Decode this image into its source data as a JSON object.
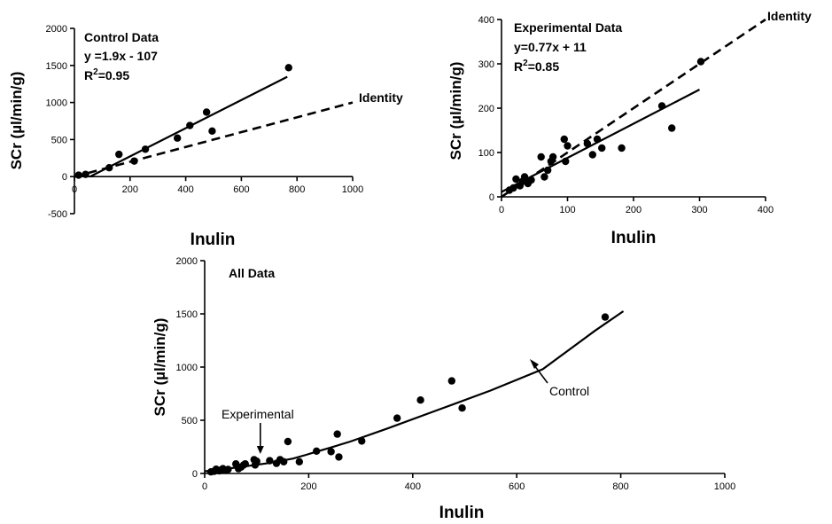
{
  "chart_data": [
    {
      "type": "scatter",
      "xlabel": "Inulin",
      "ylabel": "SCr (µl/min/g)",
      "xlim": [
        0,
        1000
      ],
      "ylim": [
        -500,
        2000
      ],
      "x_ticks": [
        "0",
        "200",
        "400",
        "600",
        "800",
        "1000"
      ],
      "y_ticks": [
        "-500",
        "0",
        "500",
        "1000",
        "1500",
        "2000"
      ],
      "annotations": {
        "title": "Control Data",
        "equation": "y =1.9x - 107",
        "r2_prefix": "R",
        "r2_sup": "2",
        "r2_value": "=0.95",
        "identity_label": "Identity"
      },
      "points": [
        {
          "x": 15,
          "y": 20
        },
        {
          "x": 40,
          "y": 30
        },
        {
          "x": 125,
          "y": 120
        },
        {
          "x": 160,
          "y": 300
        },
        {
          "x": 215,
          "y": 210
        },
        {
          "x": 255,
          "y": 370
        },
        {
          "x": 370,
          "y": 520
        },
        {
          "x": 415,
          "y": 690
        },
        {
          "x": 475,
          "y": 870
        },
        {
          "x": 495,
          "y": 615
        },
        {
          "x": 770,
          "y": 1470
        }
      ],
      "fit_line": {
        "x": [
          55,
          765
        ],
        "y": [
          -2,
          1347
        ]
      },
      "identity_line": {
        "x": [
          0,
          1000
        ],
        "y": [
          0,
          1000
        ]
      }
    },
    {
      "type": "scatter",
      "xlabel": "Inulin",
      "ylabel": "SCr (µl/min/g)",
      "xlim": [
        0,
        400
      ],
      "ylim": [
        0,
        400
      ],
      "x_ticks": [
        "0",
        "100",
        "200",
        "300",
        "400"
      ],
      "y_ticks": [
        "0",
        "100",
        "200",
        "300",
        "400"
      ],
      "annotations": {
        "title": "Experimental Data",
        "equation": "y=0.77x + 11",
        "r2_prefix": "R",
        "r2_sup": "2",
        "r2_value": "=0.85",
        "identity_label": "Identity"
      },
      "points": [
        {
          "x": 12,
          "y": 15
        },
        {
          "x": 18,
          "y": 20
        },
        {
          "x": 22,
          "y": 40
        },
        {
          "x": 28,
          "y": 25
        },
        {
          "x": 32,
          "y": 35
        },
        {
          "x": 35,
          "y": 45
        },
        {
          "x": 40,
          "y": 30
        },
        {
          "x": 45,
          "y": 38
        },
        {
          "x": 60,
          "y": 90
        },
        {
          "x": 65,
          "y": 45
        },
        {
          "x": 70,
          "y": 60
        },
        {
          "x": 75,
          "y": 80
        },
        {
          "x": 78,
          "y": 90
        },
        {
          "x": 95,
          "y": 130
        },
        {
          "x": 97,
          "y": 80
        },
        {
          "x": 100,
          "y": 115
        },
        {
          "x": 130,
          "y": 120
        },
        {
          "x": 138,
          "y": 95
        },
        {
          "x": 145,
          "y": 130
        },
        {
          "x": 152,
          "y": 110
        },
        {
          "x": 182,
          "y": 110
        },
        {
          "x": 243,
          "y": 205
        },
        {
          "x": 258,
          "y": 155
        },
        {
          "x": 302,
          "y": 305
        }
      ],
      "fit_line": {
        "x": [
          0,
          300
        ],
        "y": [
          11,
          242
        ]
      },
      "identity_line": {
        "x": [
          0,
          400
        ],
        "y": [
          0,
          400
        ]
      }
    },
    {
      "type": "scatter",
      "xlabel": "Inulin",
      "ylabel": "SCr (µl/min/g)",
      "xlim": [
        0,
        1000
      ],
      "ylim": [
        0,
        2000
      ],
      "x_ticks": [
        "0",
        "200",
        "400",
        "600",
        "800",
        "1000"
      ],
      "y_ticks": [
        "0",
        "500",
        "1000",
        "1500",
        "2000"
      ],
      "annotations": {
        "title": "All Data",
        "experimental_label": "Experimental",
        "control_label": "Control"
      },
      "points": [
        {
          "x": 12,
          "y": 15
        },
        {
          "x": 18,
          "y": 20
        },
        {
          "x": 22,
          "y": 40
        },
        {
          "x": 28,
          "y": 25
        },
        {
          "x": 32,
          "y": 35
        },
        {
          "x": 35,
          "y": 45
        },
        {
          "x": 40,
          "y": 30
        },
        {
          "x": 45,
          "y": 38
        },
        {
          "x": 60,
          "y": 90
        },
        {
          "x": 65,
          "y": 45
        },
        {
          "x": 70,
          "y": 60
        },
        {
          "x": 75,
          "y": 80
        },
        {
          "x": 78,
          "y": 90
        },
        {
          "x": 95,
          "y": 130
        },
        {
          "x": 97,
          "y": 80
        },
        {
          "x": 100,
          "y": 115
        },
        {
          "x": 125,
          "y": 120
        },
        {
          "x": 138,
          "y": 95
        },
        {
          "x": 145,
          "y": 130
        },
        {
          "x": 152,
          "y": 110
        },
        {
          "x": 160,
          "y": 300
        },
        {
          "x": 182,
          "y": 110
        },
        {
          "x": 215,
          "y": 210
        },
        {
          "x": 243,
          "y": 205
        },
        {
          "x": 255,
          "y": 370
        },
        {
          "x": 258,
          "y": 155
        },
        {
          "x": 302,
          "y": 305
        },
        {
          "x": 370,
          "y": 520
        },
        {
          "x": 415,
          "y": 690
        },
        {
          "x": 475,
          "y": 870
        },
        {
          "x": 495,
          "y": 615
        },
        {
          "x": 770,
          "y": 1470
        }
      ],
      "fit_curve": {
        "x": [
          0,
          60,
          120,
          170,
          195,
          215,
          240,
          280,
          350,
          450,
          550,
          650,
          750,
          805
        ],
        "y": [
          20,
          55,
          95,
          140,
          175,
          205,
          240,
          300,
          420,
          600,
          780,
          980,
          1340,
          1525
        ]
      }
    }
  ]
}
